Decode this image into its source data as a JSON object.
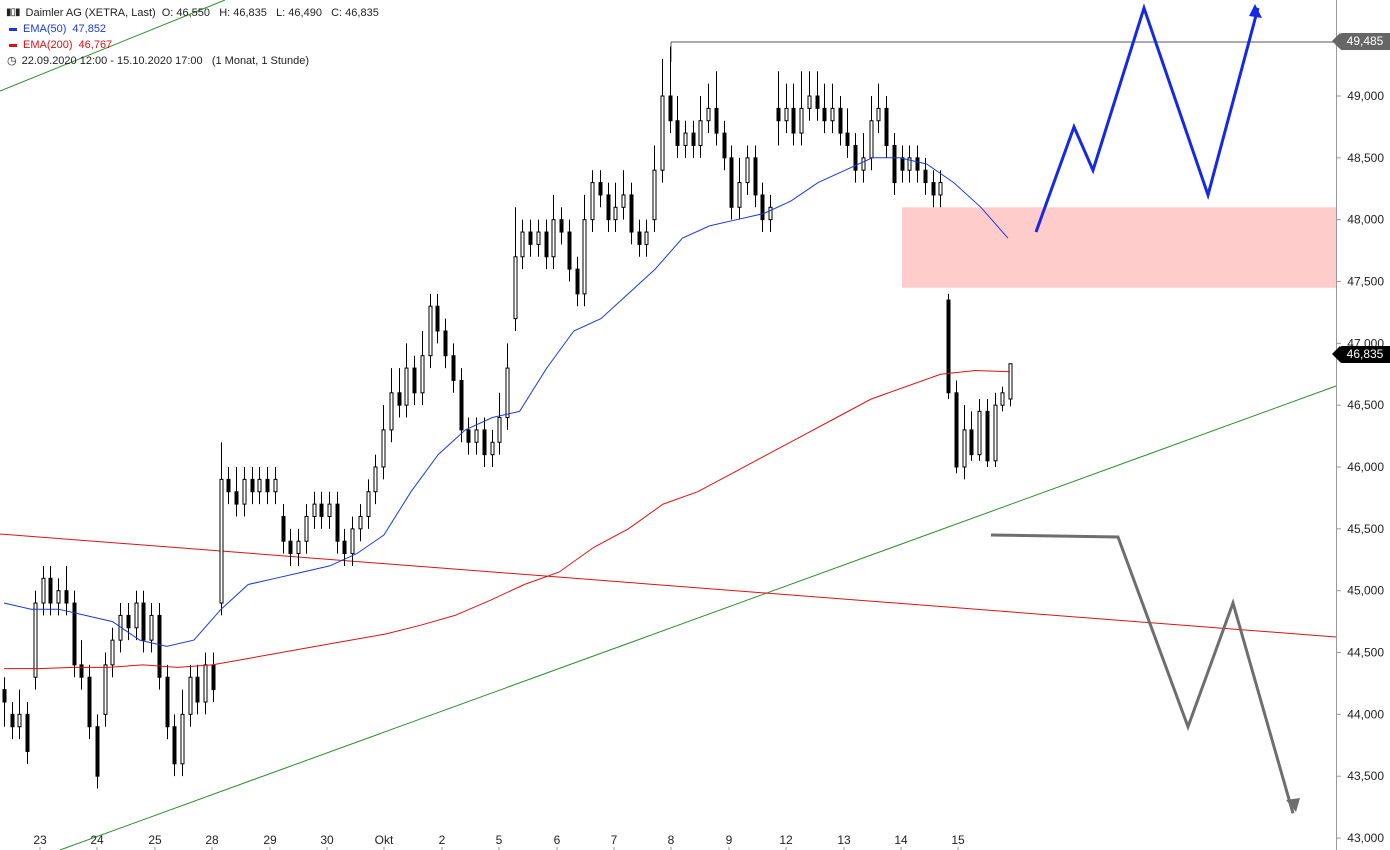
{
  "instrument": {
    "name": "Daimler AG (XETRA, Last)",
    "ohlc": "O: 46,550   H: 46,835   L: 46,490   C: 46,835",
    "period": "22.09.2020 12:00 - 15.10.2020 17:00   (1 Monat, 1 Stunde)"
  },
  "legend": {
    "ema50_label": "EMA(50)",
    "ema50_value": "47,852",
    "ema50_color": "#1a3ad8",
    "ema200_label": "EMA(200)",
    "ema200_value": "46,767",
    "ema200_color": "#e01010"
  },
  "price_tags": {
    "high_marker": "49,485",
    "last_price": "46,835"
  },
  "chart_data": {
    "type": "candlestick",
    "y_axis": {
      "ticks": [
        "49,000",
        "48,500",
        "48,000",
        "47,500",
        "47,000",
        "46,500",
        "46,000",
        "45,500",
        "45,000",
        "44,500",
        "44,000",
        "43,500",
        "43,000"
      ],
      "range": [
        42.95,
        49.85
      ]
    },
    "x_axis": {
      "labels": [
        "23",
        "24",
        "25",
        "28",
        "29",
        "30",
        "Okt",
        "2",
        "5",
        "6",
        "7",
        "8",
        "9",
        "12",
        "13",
        "14",
        "15"
      ]
    },
    "candles": [
      [
        44.2,
        44.1,
        43.9,
        44.3
      ],
      [
        44.0,
        43.9,
        43.8,
        44.1
      ],
      [
        43.9,
        44.0,
        43.8,
        44.2
      ],
      [
        44.0,
        43.7,
        43.6,
        44.1
      ],
      [
        44.3,
        44.9,
        44.2,
        45.0
      ],
      [
        44.9,
        45.1,
        44.8,
        45.2
      ],
      [
        45.1,
        44.9,
        44.8,
        45.2
      ],
      [
        44.9,
        45.0,
        44.8,
        45.1
      ],
      [
        45.0,
        44.9,
        44.8,
        45.2
      ],
      [
        44.9,
        44.4,
        44.3,
        45.0
      ],
      [
        44.4,
        44.3,
        44.2,
        44.6
      ],
      [
        44.3,
        43.9,
        43.8,
        44.4
      ],
      [
        43.9,
        43.5,
        43.4,
        44.0
      ],
      [
        44.0,
        44.4,
        43.9,
        44.5
      ],
      [
        44.4,
        44.6,
        44.3,
        44.7
      ],
      [
        44.6,
        44.8,
        44.5,
        44.9
      ],
      [
        44.8,
        44.7,
        44.6,
        44.9
      ],
      [
        44.7,
        44.9,
        44.6,
        45.0
      ],
      [
        44.9,
        44.6,
        44.5,
        45.0
      ],
      [
        44.6,
        44.8,
        44.5,
        44.9
      ],
      [
        44.8,
        44.3,
        44.2,
        44.9
      ],
      [
        44.3,
        43.9,
        43.8,
        44.4
      ],
      [
        43.9,
        43.6,
        43.5,
        44.0
      ],
      [
        43.6,
        44.0,
        43.5,
        44.2
      ],
      [
        44.0,
        44.3,
        43.9,
        44.4
      ],
      [
        44.3,
        44.1,
        44.0,
        44.4
      ],
      [
        44.1,
        44.4,
        44.0,
        44.5
      ],
      [
        44.4,
        44.2,
        44.1,
        44.5
      ],
      [
        44.9,
        45.9,
        44.8,
        46.2
      ],
      [
        45.9,
        45.8,
        45.7,
        46.0
      ],
      [
        45.8,
        45.7,
        45.6,
        46.0
      ],
      [
        45.7,
        45.9,
        45.6,
        46.0
      ],
      [
        45.9,
        45.8,
        45.7,
        46.0
      ],
      [
        45.8,
        45.9,
        45.7,
        46.0
      ],
      [
        45.9,
        45.8,
        45.7,
        46.0
      ],
      [
        45.8,
        45.9,
        45.7,
        46.0
      ],
      [
        45.6,
        45.4,
        45.3,
        45.7
      ],
      [
        45.4,
        45.3,
        45.2,
        45.5
      ],
      [
        45.3,
        45.4,
        45.2,
        45.5
      ],
      [
        45.4,
        45.6,
        45.3,
        45.7
      ],
      [
        45.6,
        45.7,
        45.5,
        45.8
      ],
      [
        45.7,
        45.6,
        45.5,
        45.8
      ],
      [
        45.6,
        45.7,
        45.5,
        45.8
      ],
      [
        45.7,
        45.4,
        45.3,
        45.8
      ],
      [
        45.4,
        45.3,
        45.2,
        45.5
      ],
      [
        45.3,
        45.5,
        45.2,
        45.6
      ],
      [
        45.5,
        45.6,
        45.4,
        45.7
      ],
      [
        45.6,
        45.8,
        45.5,
        45.9
      ],
      [
        45.8,
        46.0,
        45.7,
        46.1
      ],
      [
        46.0,
        46.3,
        45.9,
        46.5
      ],
      [
        46.3,
        46.6,
        46.2,
        46.8
      ],
      [
        46.6,
        46.5,
        46.4,
        46.8
      ],
      [
        46.5,
        46.8,
        46.4,
        47.0
      ],
      [
        46.8,
        46.6,
        46.5,
        46.9
      ],
      [
        46.6,
        46.9,
        46.5,
        47.1
      ],
      [
        46.9,
        47.3,
        46.8,
        47.4
      ],
      [
        47.3,
        47.1,
        47.0,
        47.4
      ],
      [
        47.1,
        46.9,
        46.8,
        47.2
      ],
      [
        46.9,
        46.7,
        46.6,
        47.0
      ],
      [
        46.7,
        46.3,
        46.2,
        46.8
      ],
      [
        46.3,
        46.2,
        46.1,
        46.4
      ],
      [
        46.2,
        46.3,
        46.1,
        46.4
      ],
      [
        46.3,
        46.1,
        46.0,
        46.4
      ],
      [
        46.1,
        46.2,
        46.0,
        46.3
      ],
      [
        46.2,
        46.4,
        46.1,
        46.6
      ],
      [
        46.4,
        46.8,
        46.3,
        47.0
      ],
      [
        47.2,
        47.7,
        47.1,
        48.1
      ],
      [
        47.7,
        47.9,
        47.6,
        48.0
      ],
      [
        47.9,
        47.8,
        47.7,
        48.0
      ],
      [
        47.8,
        47.9,
        47.7,
        48.0
      ],
      [
        47.9,
        47.7,
        47.6,
        48.0
      ],
      [
        47.7,
        48.0,
        47.6,
        48.2
      ],
      [
        48.0,
        47.9,
        47.8,
        48.1
      ],
      [
        47.9,
        47.6,
        47.5,
        48.0
      ],
      [
        47.6,
        47.4,
        47.3,
        47.7
      ],
      [
        47.4,
        48.0,
        47.3,
        48.2
      ],
      [
        48.0,
        48.3,
        47.9,
        48.4
      ],
      [
        48.3,
        48.2,
        48.1,
        48.4
      ],
      [
        48.2,
        48.0,
        47.9,
        48.3
      ],
      [
        48.0,
        48.1,
        47.9,
        48.3
      ],
      [
        48.1,
        48.2,
        48.0,
        48.4
      ],
      [
        48.2,
        47.9,
        47.8,
        48.3
      ],
      [
        47.9,
        47.8,
        47.7,
        48.0
      ],
      [
        47.8,
        47.9,
        47.7,
        48.0
      ],
      [
        48.0,
        48.4,
        47.9,
        48.6
      ],
      [
        48.4,
        49.0,
        48.3,
        49.3
      ],
      [
        49.0,
        48.8,
        48.7,
        49.4
      ],
      [
        48.8,
        48.6,
        48.5,
        49.0
      ],
      [
        48.6,
        48.7,
        48.5,
        48.8
      ],
      [
        48.7,
        48.6,
        48.5,
        48.8
      ],
      [
        48.6,
        48.8,
        48.5,
        49.0
      ],
      [
        48.8,
        48.9,
        48.7,
        49.1
      ],
      [
        48.9,
        48.7,
        48.6,
        49.2
      ],
      [
        48.7,
        48.5,
        48.4,
        48.8
      ],
      [
        48.5,
        48.1,
        48.0,
        48.6
      ],
      [
        48.1,
        48.3,
        48.0,
        48.5
      ],
      [
        48.3,
        48.5,
        48.2,
        48.6
      ],
      [
        48.5,
        48.2,
        48.1,
        48.6
      ],
      [
        48.2,
        48.0,
        47.9,
        48.3
      ],
      [
        48.0,
        48.1,
        47.9,
        48.2
      ],
      [
        48.9,
        48.8,
        48.6,
        49.2
      ],
      [
        48.8,
        48.9,
        48.7,
        49.1
      ],
      [
        48.9,
        48.7,
        48.6,
        49.1
      ],
      [
        48.7,
        48.9,
        48.6,
        49.2
      ],
      [
        48.9,
        49.0,
        48.8,
        49.2
      ],
      [
        49.0,
        48.9,
        48.8,
        49.2
      ],
      [
        48.9,
        48.8,
        48.7,
        49.1
      ],
      [
        48.8,
        48.9,
        48.7,
        49.1
      ],
      [
        48.9,
        48.7,
        48.6,
        49.0
      ],
      [
        48.7,
        48.6,
        48.5,
        48.9
      ],
      [
        48.6,
        48.4,
        48.3,
        48.7
      ],
      [
        48.4,
        48.5,
        48.3,
        48.7
      ],
      [
        48.5,
        48.8,
        48.4,
        49.0
      ],
      [
        48.8,
        48.9,
        48.7,
        49.1
      ],
      [
        48.9,
        48.6,
        48.5,
        49.0
      ],
      [
        48.6,
        48.3,
        48.2,
        48.7
      ],
      [
        48.5,
        48.4,
        48.3,
        48.6
      ],
      [
        48.4,
        48.5,
        48.3,
        48.6
      ],
      [
        48.5,
        48.4,
        48.3,
        48.6
      ],
      [
        48.4,
        48.3,
        48.2,
        48.5
      ],
      [
        48.3,
        48.2,
        48.1,
        48.4
      ],
      [
        48.2,
        48.3,
        48.1,
        48.4
      ],
      [
        47.35,
        46.6,
        46.55,
        47.4
      ],
      [
        46.6,
        46.0,
        45.95,
        46.7
      ],
      [
        46.0,
        46.3,
        45.9,
        46.5
      ],
      [
        46.3,
        46.1,
        46.05,
        46.45
      ],
      [
        46.1,
        46.45,
        46.05,
        46.55
      ],
      [
        46.45,
        46.05,
        46.0,
        46.55
      ],
      [
        46.05,
        46.5,
        46.0,
        46.6
      ],
      [
        46.5,
        46.6,
        46.45,
        46.65
      ],
      [
        46.55,
        46.835,
        46.49,
        46.835
      ]
    ],
    "ema50": [
      44.9,
      44.85,
      44.85,
      44.8,
      44.75,
      44.6,
      44.55,
      44.6,
      44.85,
      45.05,
      45.1,
      45.15,
      45.2,
      45.3,
      45.45,
      45.8,
      46.1,
      46.3,
      46.4,
      46.45,
      46.8,
      47.1,
      47.2,
      47.4,
      47.6,
      47.85,
      47.95,
      48.0,
      48.05,
      48.15,
      48.3,
      48.4,
      48.5,
      48.5,
      48.45,
      48.3,
      48.1,
      47.85
    ],
    "ema200": [
      44.37,
      44.37,
      44.38,
      44.38,
      44.4,
      44.38,
      44.4,
      44.45,
      44.5,
      44.55,
      44.6,
      44.65,
      44.72,
      44.8,
      44.92,
      45.05,
      45.15,
      45.35,
      45.5,
      45.7,
      45.8,
      45.95,
      46.1,
      46.25,
      46.4,
      46.55,
      46.65,
      46.75,
      46.78,
      46.77
    ],
    "annotations": {
      "resistance_zone": [
        47.45,
        48.1
      ],
      "bullish_projection": [
        47.9,
        48.75,
        48.4,
        49.8,
        48.2,
        49.8
      ],
      "bearish_projection": [
        45.4,
        45.4,
        43.9,
        44.9,
        43.2
      ]
    }
  }
}
